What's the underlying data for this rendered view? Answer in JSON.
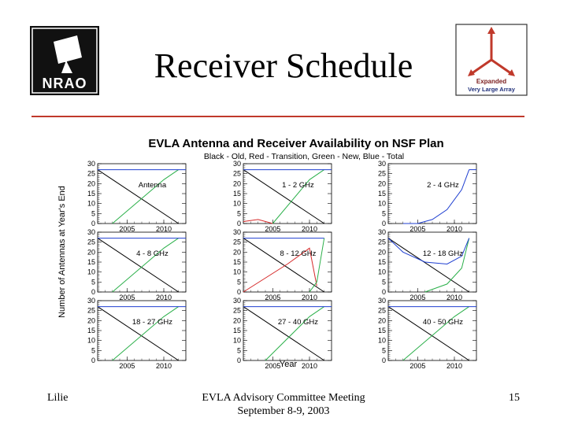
{
  "slide": {
    "title": "Receiver Schedule",
    "footer_left": "Lilie",
    "footer_center_line1": "EVLA Advisory Committee Meeting",
    "footer_center_line2": "September 8-9, 2003",
    "footer_right": "15"
  },
  "logos": {
    "nrao_text": "NRAO",
    "evla_line1": "Expanded",
    "evla_line2": "Very Large Array"
  },
  "colors": {
    "accent_rule": "#c0392b",
    "old": "#000000",
    "red": "#d62a2a",
    "transition": "#2bb04a",
    "new": "#1f3fd1"
  },
  "chart_data": {
    "type": "line",
    "title": "EVLA Antenna and Receiver Availability on NSF Plan",
    "subtitle": "Black - Old, Red - Transition, Green - New, Blue - Total",
    "ylabel": "Number of Antennas at Year's End",
    "xlabel": "Year",
    "xlim": [
      2001,
      2013
    ],
    "ylim": [
      0,
      30
    ],
    "xticks": [
      2005,
      2010
    ],
    "yticks": [
      0,
      5,
      10,
      15,
      20,
      25,
      30
    ],
    "panels": [
      {
        "label": "Antenna",
        "series": [
          {
            "color": "old",
            "x": [
              2001,
              2012
            ],
            "y": [
              27,
              0
            ]
          },
          {
            "color": "transition",
            "x": [
              2003,
              2010,
              2012
            ],
            "y": [
              0,
              22,
              27
            ]
          },
          {
            "color": "new",
            "x": [
              2001,
              2013
            ],
            "y": [
              27,
              27
            ]
          }
        ]
      },
      {
        "label": "1 - 2 GHz",
        "series": [
          {
            "color": "old",
            "x": [
              2001,
              2012
            ],
            "y": [
              27,
              0
            ]
          },
          {
            "color": "red",
            "x": [
              2001,
              2003,
              2005
            ],
            "y": [
              1,
              2,
              0
            ]
          },
          {
            "color": "transition",
            "x": [
              2005,
              2010,
              2012
            ],
            "y": [
              0,
              22,
              27
            ]
          },
          {
            "color": "new",
            "x": [
              2001,
              2013
            ],
            "y": [
              27,
              27
            ]
          }
        ]
      },
      {
        "label": "2 - 4 GHz",
        "series": [
          {
            "color": "new",
            "x": [
              2003,
              2005,
              2007,
              2009,
              2011,
              2012
            ],
            "y": [
              0,
              0,
              2,
              7,
              17,
              27
            ]
          },
          {
            "color": "new",
            "x": [
              2012,
              2013
            ],
            "y": [
              27,
              27
            ]
          }
        ]
      },
      {
        "label": "4 - 8 GHz",
        "series": [
          {
            "color": "old",
            "x": [
              2001,
              2012
            ],
            "y": [
              27,
              0
            ]
          },
          {
            "color": "transition",
            "x": [
              2003,
              2010,
              2012
            ],
            "y": [
              0,
              22,
              27
            ]
          },
          {
            "color": "new",
            "x": [
              2001,
              2013
            ],
            "y": [
              27,
              27
            ]
          }
        ]
      },
      {
        "label": "8 - 12 GHz",
        "series": [
          {
            "color": "old",
            "x": [
              2001,
              2012
            ],
            "y": [
              27,
              0
            ]
          },
          {
            "color": "red",
            "x": [
              2001,
              2007,
              2010,
              2011
            ],
            "y": [
              0,
              14,
              22,
              3
            ]
          },
          {
            "color": "transition",
            "x": [
              2010,
              2011,
              2012
            ],
            "y": [
              0,
              5,
              27
            ]
          },
          {
            "color": "new",
            "x": [
              2001,
              2012
            ],
            "y": [
              27,
              27
            ]
          }
        ]
      },
      {
        "label": "12 - 18 GHz",
        "series": [
          {
            "color": "old",
            "x": [
              2001,
              2012
            ],
            "y": [
              27,
              0
            ]
          },
          {
            "color": "transition",
            "x": [
              2006,
              2009,
              2011,
              2012
            ],
            "y": [
              0,
              4,
              12,
              27
            ]
          },
          {
            "color": "new",
            "x": [
              2001,
              2003,
              2006,
              2009,
              2011,
              2012
            ],
            "y": [
              27,
              20,
              15,
              14,
              18,
              27
            ]
          }
        ]
      },
      {
        "label": "18 - 27 GHz",
        "series": [
          {
            "color": "old",
            "x": [
              2001,
              2012
            ],
            "y": [
              27,
              0
            ]
          },
          {
            "color": "transition",
            "x": [
              2003,
              2010,
              2012
            ],
            "y": [
              0,
              22,
              27
            ]
          },
          {
            "color": "new",
            "x": [
              2001,
              2013
            ],
            "y": [
              27,
              27
            ]
          }
        ]
      },
      {
        "label": "27 - 40 GHz",
        "series": [
          {
            "color": "old",
            "x": [
              2001,
              2012
            ],
            "y": [
              27,
              0
            ]
          },
          {
            "color": "transition",
            "x": [
              2004,
              2010,
              2012
            ],
            "y": [
              0,
              22,
              27
            ]
          },
          {
            "color": "new",
            "x": [
              2001,
              2013
            ],
            "y": [
              27,
              27
            ]
          }
        ]
      },
      {
        "label": "40 - 50 GHz",
        "series": [
          {
            "color": "old",
            "x": [
              2001,
              2012
            ],
            "y": [
              27,
              0
            ]
          },
          {
            "color": "transition",
            "x": [
              2003,
              2010,
              2012
            ],
            "y": [
              0,
              22,
              27
            ]
          },
          {
            "color": "new",
            "x": [
              2001,
              2013
            ],
            "y": [
              27,
              27
            ]
          }
        ]
      }
    ]
  }
}
